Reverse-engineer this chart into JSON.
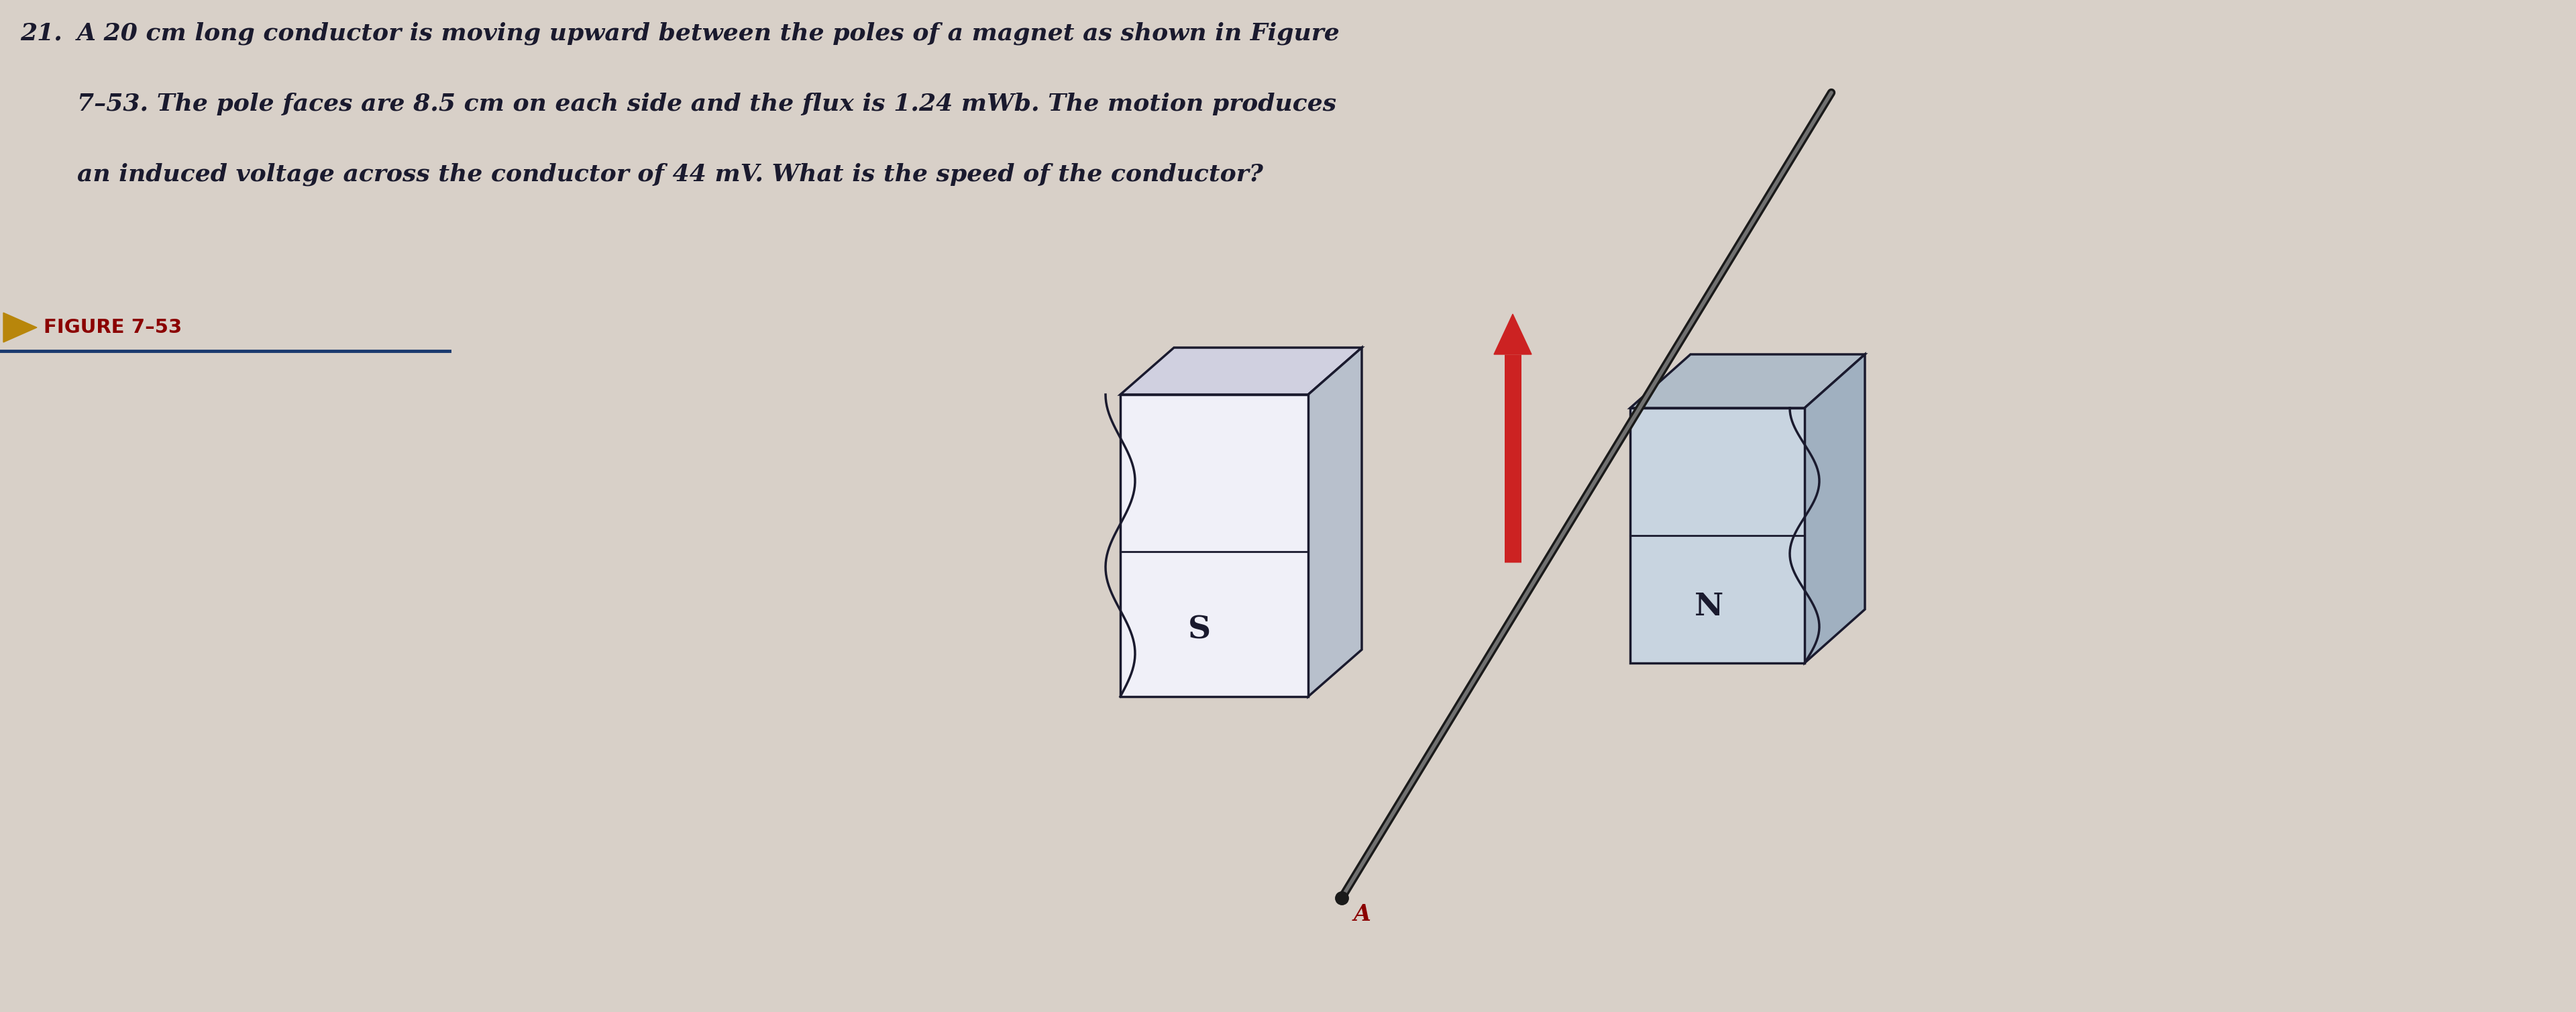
{
  "bg_color_outer": "#c8c0b8",
  "bg_color_inner": "#d8d0c8",
  "problem_number": "21.",
  "problem_text_line1": "A 20 cm long conductor is moving upward between the poles of a magnet as shown in Figure",
  "problem_text_line2": "7–53. The pole faces are 8.5 cm on each side and the flux is 1.24 mWb. The motion produces",
  "problem_text_line3": "an induced voltage across the conductor of 44 mV. What is the speed of the conductor?",
  "figure_label": "FIGURE 7–53",
  "label_color": "#8B0000",
  "label_arrow_color": "#B8860B",
  "text_color": "#1a1a2e",
  "s_label": "S",
  "n_label": "N",
  "a_label": "A",
  "conductor_color": "#303030",
  "arrow_color": "#cc2222",
  "magnet_s_face_color": "#f0f0f8",
  "magnet_s_top_color": "#d0d0e0",
  "magnet_s_side_color": "#b8c0cc",
  "magnet_n_face_color": "#c8d4e0",
  "magnet_n_top_color": "#b0bcc8",
  "magnet_n_side_color": "#a0b0c0",
  "magnet_outline_color": "#1a1a2e",
  "divider_line_color": "#1a1a2e",
  "figure_line_color": "#1a3a6e"
}
